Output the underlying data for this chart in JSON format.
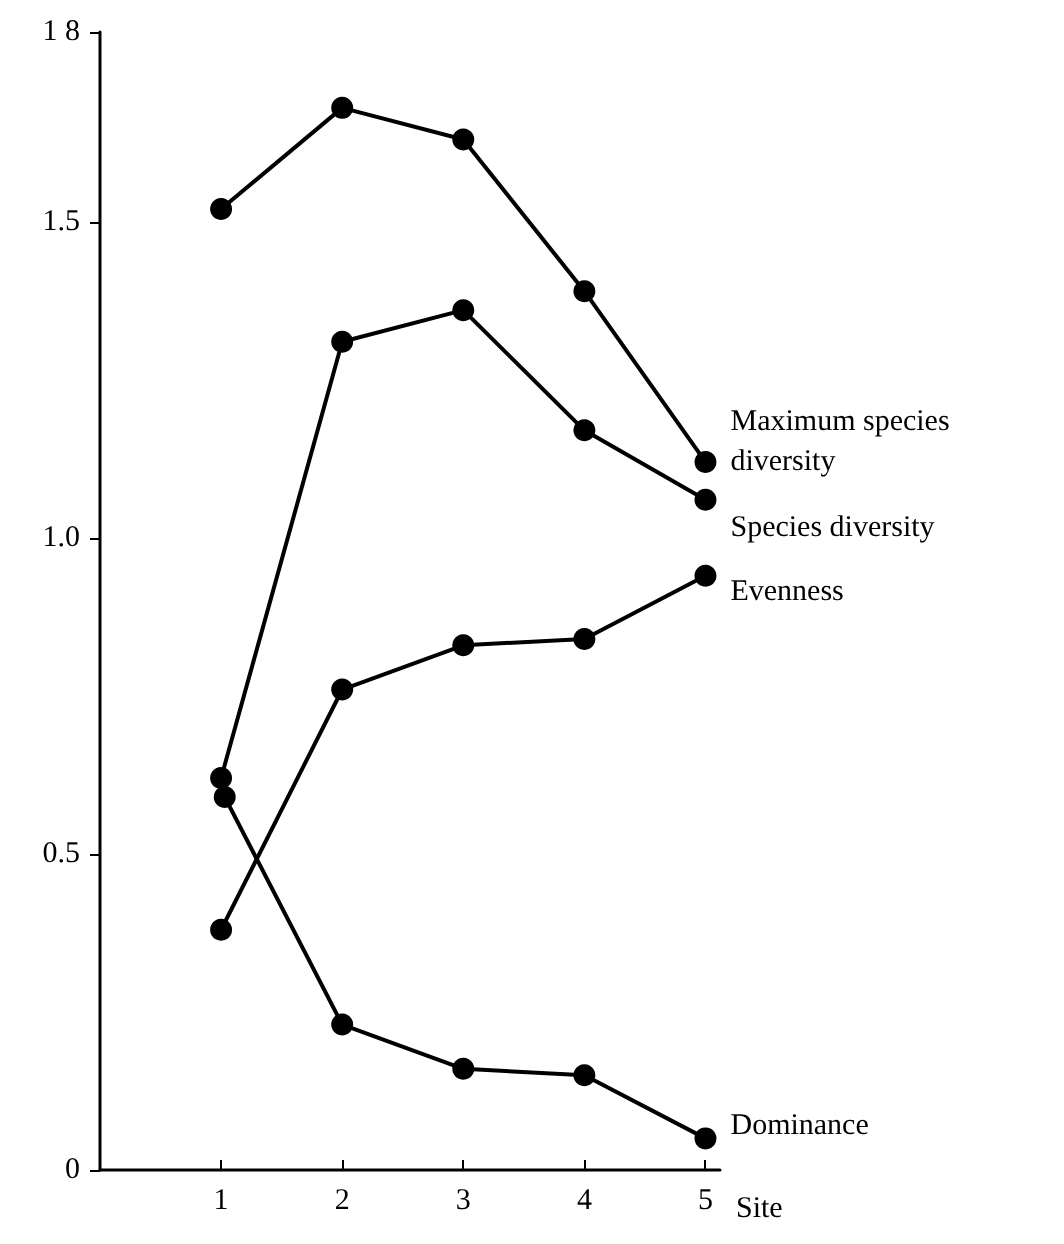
{
  "chart_data": {
    "type": "line",
    "xlabel": "Site",
    "x": [
      1,
      2,
      3,
      4,
      5
    ],
    "series": [
      {
        "name": "Maximum species diversity",
        "color": "#000000",
        "values": [
          1.52,
          1.68,
          1.63,
          1.39,
          1.12
        ]
      },
      {
        "name": "Species diversity",
        "color": "#000000",
        "values": [
          0.62,
          1.31,
          1.36,
          1.17,
          1.06
        ]
      },
      {
        "name": "Evenness",
        "color": "#000000",
        "values": [
          0.38,
          0.76,
          0.83,
          0.84,
          0.94
        ]
      },
      {
        "name": "Dominance",
        "color": "#000000",
        "x": [
          1.03,
          2,
          3,
          4,
          5
        ],
        "values": [
          0.59,
          0.23,
          0.16,
          0.15,
          0.05
        ]
      }
    ],
    "xlim": [
      0,
      5.12
    ],
    "xticks": [
      1,
      2,
      3,
      4,
      5
    ],
    "ylim": [
      0,
      1.8
    ],
    "yticks": [
      0,
      0.5,
      {
        "value": 1,
        "label": "1.0"
      },
      1.5,
      {
        "value": 1.8,
        "label": "1 8"
      }
    ],
    "grid": false,
    "legend": false,
    "marker": "circle",
    "line_style": "solid"
  }
}
